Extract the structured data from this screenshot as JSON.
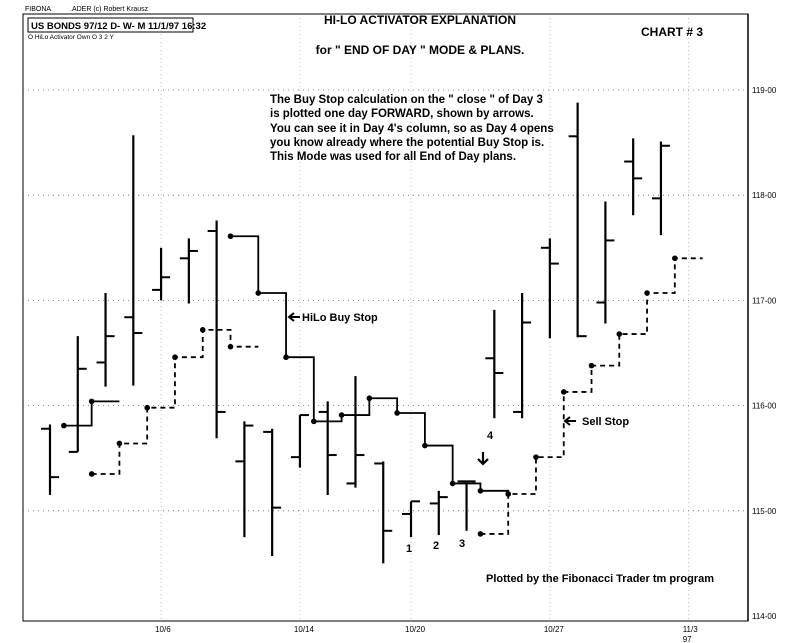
{
  "header": {
    "top_left_1": "FIBONA",
    "top_left_2": ".ADER (c) Robert Krausz",
    "symbol_box": "US BONDS 97/12 D- W- M  11/1/97 16:32",
    "indicator_legend": "O HiLo Activator Own O 3 2 Y"
  },
  "chart_data": {
    "type": "ohlc",
    "title": "HI-LO ACTIVATOR EXPLANATION",
    "subtitle": "for \" END OF DAY \" MODE & PLANS.",
    "chart_number": "CHART # 3",
    "explanation": [
      "The Buy Stop calculation on the \" close \" of Day 3",
      "is plotted one day FORWARD, shown by arrows.",
      "You can see it in Day 4's column, so as Day 4 opens",
      "you know already where the potential Buy Stop is.",
      "This Mode was used for all End of Day plans."
    ],
    "footer": "Plotted by the Fibonacci Trader tm program",
    "ylim": [
      114,
      119
    ],
    "y_ticks": [
      {
        "value": 119,
        "label": "119-00"
      },
      {
        "value": 118,
        "label": "118-00"
      },
      {
        "value": 117,
        "label": "117-00"
      },
      {
        "value": 116,
        "label": "116-00"
      },
      {
        "value": 115,
        "label": "115-00"
      },
      {
        "value": 114,
        "label": "114-00"
      }
    ],
    "x_ticks": [
      {
        "index": 4,
        "label": "10/6"
      },
      {
        "index": 9,
        "label": "10/14"
      },
      {
        "index": 13,
        "label": "10/20"
      },
      {
        "index": 18,
        "label": "10/27"
      },
      {
        "index": 23,
        "label": "11/3",
        "sublabel": "97"
      }
    ],
    "grid": true,
    "bars": [
      {
        "o": 115.78,
        "h": 115.82,
        "l": 115.15,
        "c": 115.32
      },
      {
        "o": 115.56,
        "h": 116.66,
        "l": 115.56,
        "c": 116.35
      },
      {
        "o": 116.41,
        "h": 117.07,
        "l": 116.18,
        "c": 116.66
      },
      {
        "o": 116.84,
        "h": 118.57,
        "l": 116.19,
        "c": 116.69
      },
      {
        "o": 117.1,
        "h": 117.5,
        "l": 117.0,
        "c": 117.22
      },
      {
        "o": 117.4,
        "h": 117.59,
        "l": 116.97,
        "c": 117.47
      },
      {
        "o": 117.66,
        "h": 117.76,
        "l": 115.69,
        "c": 115.94
      },
      {
        "o": 115.47,
        "h": 115.85,
        "l": 114.75,
        "c": 115.81
      },
      {
        "o": 115.75,
        "h": 115.78,
        "l": 114.57,
        "c": 115.03
      },
      {
        "o": 115.51,
        "h": 115.91,
        "l": 115.41,
        "c": 115.91
      },
      {
        "o": 115.94,
        "h": 116.04,
        "l": 115.15,
        "c": 115.53
      },
      {
        "o": 115.26,
        "h": 116.28,
        "l": 115.22,
        "c": 115.53
      },
      {
        "o": 115.45,
        "h": 115.47,
        "l": 114.5,
        "c": 114.81
      },
      {
        "o": 114.97,
        "h": 115.09,
        "l": 114.75,
        "c": 115.09
      },
      {
        "o": 115.07,
        "h": 115.19,
        "l": 114.77,
        "c": 115.13
      },
      {
        "o": 115.28,
        "h": 115.28,
        "l": 114.81,
        "c": 115.28
      },
      {
        "o": 116.45,
        "h": 116.91,
        "l": 115.88,
        "c": 116.31
      },
      {
        "o": 115.94,
        "h": 117.07,
        "l": 115.88,
        "c": 116.79
      },
      {
        "o": 117.5,
        "h": 117.59,
        "l": 116.64,
        "c": 117.35
      },
      {
        "o": 118.56,
        "h": 118.88,
        "l": 116.65,
        "c": 116.66
      },
      {
        "o": 116.98,
        "h": 117.94,
        "l": 116.78,
        "c": 117.57
      },
      {
        "o": 118.32,
        "h": 118.54,
        "l": 117.81,
        "c": 118.16
      },
      {
        "o": 117.97,
        "h": 118.51,
        "l": 117.62,
        "c": 118.47
      }
    ],
    "series": [
      {
        "name": "HiLo Buy Stop",
        "style": "solid",
        "segments": [
          [
            [
              0.5,
              115.81
            ],
            [
              1.5,
              116.04
            ],
            [
              2.5,
              116.04
            ]
          ],
          [
            [
              6.5,
              117.61
            ],
            [
              7.5,
              117.07
            ],
            [
              8.5,
              116.46
            ],
            [
              9.5,
              115.85
            ],
            [
              10.5,
              115.91
            ],
            [
              11.5,
              116.07
            ],
            [
              12.5,
              115.93
            ],
            [
              13.5,
              115.62
            ],
            [
              14.5,
              115.26
            ],
            [
              15.5,
              115.19
            ],
            [
              16.5,
              115.16
            ]
          ]
        ]
      },
      {
        "name": "Sell Stop",
        "style": "dashed",
        "segments": [
          [
            [
              1.5,
              115.35
            ],
            [
              2.5,
              115.64
            ],
            [
              3.5,
              115.98
            ],
            [
              4.5,
              116.46
            ],
            [
              5.5,
              116.72
            ],
            [
              6.5,
              116.56
            ],
            [
              7.5,
              116.56
            ]
          ],
          [
            [
              15.5,
              114.78
            ],
            [
              16.5,
              115.16
            ],
            [
              17.5,
              115.51
            ],
            [
              18.5,
              116.13
            ],
            [
              19.5,
              116.38
            ],
            [
              20.5,
              116.68
            ],
            [
              21.5,
              117.07
            ],
            [
              22.5,
              117.4
            ],
            [
              23.5,
              117.4
            ]
          ]
        ]
      }
    ],
    "annotations": {
      "buy_stop_label": "HiLo Buy Stop",
      "sell_stop_label": "Sell Stop",
      "day_labels": [
        {
          "index": 13,
          "label": "1"
        },
        {
          "index": 14,
          "label": "2"
        },
        {
          "index": 15,
          "label": "3"
        },
        {
          "index": 16,
          "label": "4"
        }
      ]
    }
  }
}
